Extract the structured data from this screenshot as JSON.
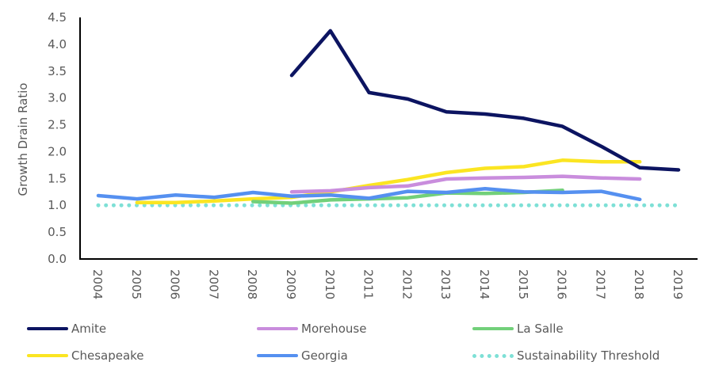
{
  "chart_data": {
    "type": "line",
    "title": "",
    "xlabel": "",
    "ylabel": "Growth Drain Ratio",
    "ylim": [
      0,
      4.5
    ],
    "yticks": [
      "0.0",
      "0.5",
      "1.0",
      "1.5",
      "2.0",
      "2.5",
      "3.0",
      "3.5",
      "4.0",
      "4.5"
    ],
    "categories": [
      "2004",
      "2005",
      "2006",
      "2007",
      "2008",
      "2009",
      "2010",
      "2011",
      "2012",
      "2013",
      "2014",
      "2015",
      "2016",
      "2017",
      "2018",
      "2019"
    ],
    "grid": false,
    "legend_position": "bottom",
    "series": [
      {
        "name": "Amite",
        "color": "#0c1461",
        "style": "solid",
        "values": [
          null,
          null,
          null,
          null,
          null,
          3.42,
          4.25,
          3.1,
          2.98,
          2.74,
          2.7,
          2.62,
          2.47,
          2.1,
          1.7,
          1.66
        ]
      },
      {
        "name": "Morehouse",
        "color": "#c98ddd",
        "style": "solid",
        "values": [
          null,
          null,
          null,
          null,
          null,
          1.25,
          1.27,
          1.33,
          1.36,
          1.49,
          1.51,
          1.52,
          1.54,
          1.51,
          1.49,
          null
        ]
      },
      {
        "name": "La Salle",
        "color": "#72d07a",
        "style": "solid",
        "values": [
          null,
          null,
          null,
          null,
          1.07,
          1.04,
          1.1,
          1.12,
          1.14,
          1.23,
          1.22,
          1.24,
          1.28,
          null,
          null,
          null
        ]
      },
      {
        "name": "Chesapeake",
        "color": "#fbe522",
        "style": "solid",
        "values": [
          null,
          1.05,
          1.05,
          1.08,
          1.12,
          1.15,
          1.25,
          1.37,
          1.48,
          1.61,
          1.69,
          1.72,
          1.84,
          1.81,
          1.81,
          null
        ]
      },
      {
        "name": "Georgia",
        "color": "#5590f0",
        "style": "solid",
        "values": [
          1.18,
          1.12,
          1.19,
          1.15,
          1.24,
          1.17,
          1.19,
          1.13,
          1.26,
          1.24,
          1.31,
          1.25,
          1.24,
          1.26,
          1.11,
          null
        ]
      },
      {
        "name": "Sustainability Threshold",
        "color": "#7ee0d6",
        "style": "dotted",
        "values": [
          1.0,
          1.0,
          1.0,
          1.0,
          1.0,
          1.0,
          1.0,
          1.0,
          1.0,
          1.0,
          1.0,
          1.0,
          1.0,
          1.0,
          1.0,
          1.0
        ]
      }
    ]
  }
}
